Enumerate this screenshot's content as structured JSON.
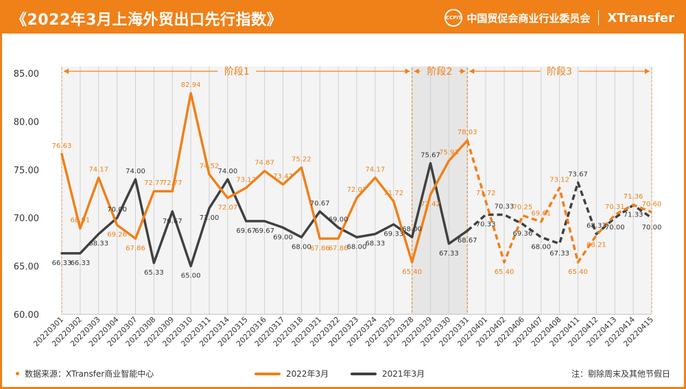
{
  "header": {
    "title": "《2022年3月上海外贸出口先行指数》",
    "org": "中国贸促会商业行业委员会",
    "brand": "XTransfer",
    "seal_text": "CCPIT"
  },
  "footer": {
    "source": "数据来源：XTransfer商业智能中心",
    "note": "注：剔除周末及其他节假日"
  },
  "colors": {
    "orange": "#f08018",
    "gray": "#404040",
    "phase2_bg": "#e6e6e6",
    "plot_bg": "#f4f4f4"
  },
  "chart_data": {
    "type": "line",
    "ylim": [
      60,
      85
    ],
    "yticks": [
      "60.00",
      "65.00",
      "70.00",
      "75.00",
      "80.00",
      "85.00"
    ],
    "categories": [
      "20220301",
      "20220302",
      "20220303",
      "20220304",
      "20220307",
      "20220308",
      "20220309",
      "20220310",
      "20220311",
      "20220314",
      "20220315",
      "20220316",
      "20220317",
      "20220318",
      "20220321",
      "20220322",
      "20220323",
      "20220324",
      "20220325",
      "20220328",
      "20220329",
      "20220330",
      "20220331",
      "20220401",
      "20220402",
      "20220406",
      "20220407",
      "20220408",
      "20220411",
      "20220412",
      "20220413",
      "20220414",
      "20220415"
    ],
    "series": [
      {
        "name": "2022年3月",
        "color": "#f08018",
        "solid_until_index": 22,
        "values": [
          76.63,
          68.91,
          74.17,
          69.26,
          67.86,
          72.77,
          72.77,
          82.94,
          74.52,
          72.07,
          73.12,
          74.87,
          73.47,
          75.22,
          67.86,
          67.86,
          72.07,
          74.17,
          71.72,
          65.4,
          72.42,
          75.93,
          78.03,
          71.72,
          65.4,
          70.25,
          69.61,
          73.12,
          65.4,
          68.21,
          70.31,
          71.36,
          70.6
        ],
        "labels": [
          "76.63",
          "68.91",
          "74.17",
          "69.26",
          "67.86",
          "72.77",
          "72.77",
          "82.94",
          "74.52",
          "72.07",
          "73.12",
          "74.87",
          "73.47",
          "75.22",
          "67.86",
          "67.86",
          "72.07",
          "74.17",
          "71.72",
          "65.40",
          "72.42",
          "75.93",
          "78.03",
          "71.72",
          "65.40",
          "70.25",
          "69.61",
          "73.12",
          "65.40",
          "68.21",
          "70.31",
          "71.36",
          "70.60"
        ]
      },
      {
        "name": "2021年3月",
        "color": "#404040",
        "solid_until_index": 22,
        "values": [
          66.33,
          66.33,
          68.33,
          70.0,
          74.0,
          65.33,
          70.67,
          65.0,
          71.0,
          74.0,
          69.67,
          69.67,
          69.0,
          68.0,
          70.67,
          69.0,
          68.0,
          68.33,
          69.33,
          68.0,
          75.67,
          67.33,
          68.67,
          70.33,
          70.33,
          69.36,
          68.0,
          67.33,
          73.67,
          68.33,
          70.0,
          71.33,
          70.0
        ],
        "labels": [
          "66.33",
          "66.33",
          "68.33",
          "70.00",
          "74.00",
          "65.33",
          "70.67",
          "65.00",
          "71.00",
          "74.00",
          "69.67",
          "69.67",
          "69.00",
          "68.00",
          "70.67",
          "69.00",
          "68.00",
          "68.33",
          "69.33",
          "68.00",
          "75.67",
          "67.33",
          "68.67",
          "70.33",
          "70.33",
          "69.36",
          "68.00",
          "67.33",
          "73.67",
          "68.33",
          "70.00",
          "71.33",
          "70.00"
        ]
      }
    ],
    "phases": [
      {
        "label": "阶段1",
        "start_index": 0,
        "end_index": 19
      },
      {
        "label": "阶段2",
        "start_index": 19,
        "end_index": 22
      },
      {
        "label": "阶段3",
        "start_index": 22,
        "end_index": 32
      }
    ],
    "grid": false,
    "legend_position": "bottom"
  }
}
